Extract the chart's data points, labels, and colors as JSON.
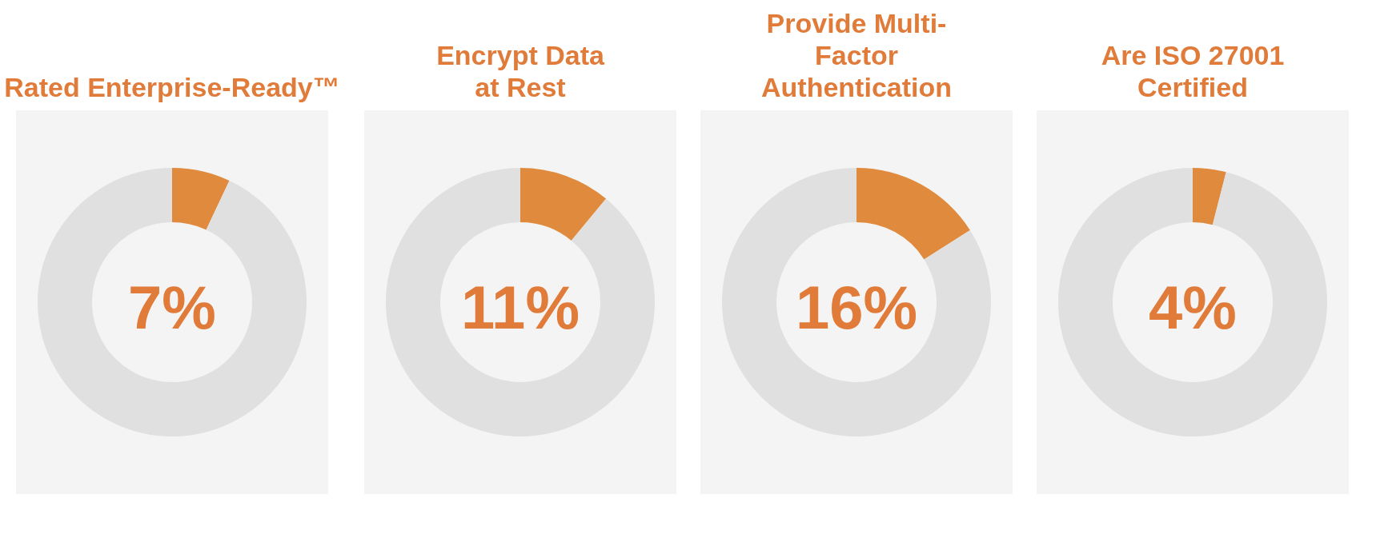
{
  "chart_data": [
    {
      "type": "donut",
      "title": "Rated Enterprise-Ready™",
      "categories": [
        null,
        null
      ],
      "values": [
        7,
        93
      ],
      "colors": [
        "#e08a3e",
        "#e0e0e0"
      ],
      "annotations": [
        "7%"
      ]
    },
    {
      "type": "donut",
      "title": "Encrypt Data\nat Rest",
      "categories": [
        null,
        null
      ],
      "values": [
        11,
        89
      ],
      "colors": [
        "#e08a3e",
        "#e0e0e0"
      ],
      "annotations": [
        "11%"
      ]
    },
    {
      "type": "donut",
      "title": "Provide Multi-\nFactor\nAuthentication",
      "categories": [
        null,
        null
      ],
      "values": [
        16,
        84
      ],
      "colors": [
        "#e08a3e",
        "#e0e0e0"
      ],
      "annotations": [
        "16%"
      ]
    },
    {
      "type": "donut",
      "title": "Are ISO 27001\nCertified",
      "categories": [
        null,
        null
      ],
      "values": [
        4,
        96
      ],
      "colors": [
        "#e08a3e",
        "#e0e0e0"
      ],
      "annotations": [
        "4%"
      ]
    }
  ]
}
